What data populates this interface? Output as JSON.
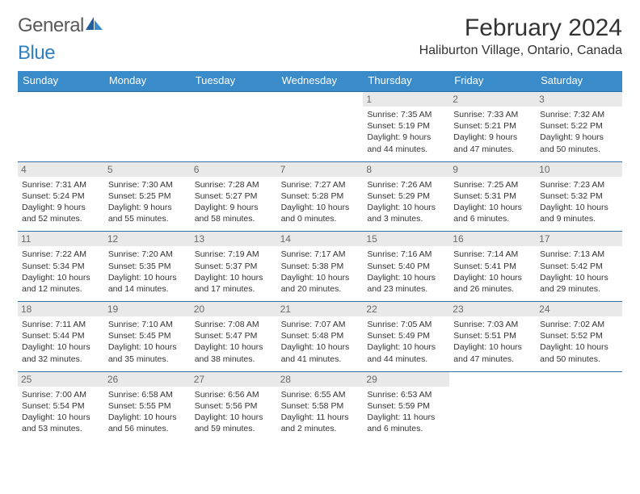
{
  "brand": {
    "word1": "General",
    "word2": "Blue"
  },
  "title": "February 2024",
  "location": "Haliburton Village, Ontario, Canada",
  "colors": {
    "header_bg": "#3a8bc9",
    "week_border": "#2f6fa6",
    "daynum_bg": "#e9e9e9",
    "text": "#333333",
    "logo_gray": "#5a5a5a",
    "logo_blue": "#2f7fc1"
  },
  "typography": {
    "title_fontsize": 30,
    "location_fontsize": 16,
    "dow_fontsize": 13,
    "daynum_fontsize": 12,
    "body_fontsize": 10.5
  },
  "days_of_week": [
    "Sunday",
    "Monday",
    "Tuesday",
    "Wednesday",
    "Thursday",
    "Friday",
    "Saturday"
  ],
  "weeks": [
    [
      null,
      null,
      null,
      null,
      {
        "n": "1",
        "sunrise": "Sunrise: 7:35 AM",
        "sunset": "Sunset: 5:19 PM",
        "dl1": "Daylight: 9 hours",
        "dl2": "and 44 minutes."
      },
      {
        "n": "2",
        "sunrise": "Sunrise: 7:33 AM",
        "sunset": "Sunset: 5:21 PM",
        "dl1": "Daylight: 9 hours",
        "dl2": "and 47 minutes."
      },
      {
        "n": "3",
        "sunrise": "Sunrise: 7:32 AM",
        "sunset": "Sunset: 5:22 PM",
        "dl1": "Daylight: 9 hours",
        "dl2": "and 50 minutes."
      }
    ],
    [
      {
        "n": "4",
        "sunrise": "Sunrise: 7:31 AM",
        "sunset": "Sunset: 5:24 PM",
        "dl1": "Daylight: 9 hours",
        "dl2": "and 52 minutes."
      },
      {
        "n": "5",
        "sunrise": "Sunrise: 7:30 AM",
        "sunset": "Sunset: 5:25 PM",
        "dl1": "Daylight: 9 hours",
        "dl2": "and 55 minutes."
      },
      {
        "n": "6",
        "sunrise": "Sunrise: 7:28 AM",
        "sunset": "Sunset: 5:27 PM",
        "dl1": "Daylight: 9 hours",
        "dl2": "and 58 minutes."
      },
      {
        "n": "7",
        "sunrise": "Sunrise: 7:27 AM",
        "sunset": "Sunset: 5:28 PM",
        "dl1": "Daylight: 10 hours",
        "dl2": "and 0 minutes."
      },
      {
        "n": "8",
        "sunrise": "Sunrise: 7:26 AM",
        "sunset": "Sunset: 5:29 PM",
        "dl1": "Daylight: 10 hours",
        "dl2": "and 3 minutes."
      },
      {
        "n": "9",
        "sunrise": "Sunrise: 7:25 AM",
        "sunset": "Sunset: 5:31 PM",
        "dl1": "Daylight: 10 hours",
        "dl2": "and 6 minutes."
      },
      {
        "n": "10",
        "sunrise": "Sunrise: 7:23 AM",
        "sunset": "Sunset: 5:32 PM",
        "dl1": "Daylight: 10 hours",
        "dl2": "and 9 minutes."
      }
    ],
    [
      {
        "n": "11",
        "sunrise": "Sunrise: 7:22 AM",
        "sunset": "Sunset: 5:34 PM",
        "dl1": "Daylight: 10 hours",
        "dl2": "and 12 minutes."
      },
      {
        "n": "12",
        "sunrise": "Sunrise: 7:20 AM",
        "sunset": "Sunset: 5:35 PM",
        "dl1": "Daylight: 10 hours",
        "dl2": "and 14 minutes."
      },
      {
        "n": "13",
        "sunrise": "Sunrise: 7:19 AM",
        "sunset": "Sunset: 5:37 PM",
        "dl1": "Daylight: 10 hours",
        "dl2": "and 17 minutes."
      },
      {
        "n": "14",
        "sunrise": "Sunrise: 7:17 AM",
        "sunset": "Sunset: 5:38 PM",
        "dl1": "Daylight: 10 hours",
        "dl2": "and 20 minutes."
      },
      {
        "n": "15",
        "sunrise": "Sunrise: 7:16 AM",
        "sunset": "Sunset: 5:40 PM",
        "dl1": "Daylight: 10 hours",
        "dl2": "and 23 minutes."
      },
      {
        "n": "16",
        "sunrise": "Sunrise: 7:14 AM",
        "sunset": "Sunset: 5:41 PM",
        "dl1": "Daylight: 10 hours",
        "dl2": "and 26 minutes."
      },
      {
        "n": "17",
        "sunrise": "Sunrise: 7:13 AM",
        "sunset": "Sunset: 5:42 PM",
        "dl1": "Daylight: 10 hours",
        "dl2": "and 29 minutes."
      }
    ],
    [
      {
        "n": "18",
        "sunrise": "Sunrise: 7:11 AM",
        "sunset": "Sunset: 5:44 PM",
        "dl1": "Daylight: 10 hours",
        "dl2": "and 32 minutes."
      },
      {
        "n": "19",
        "sunrise": "Sunrise: 7:10 AM",
        "sunset": "Sunset: 5:45 PM",
        "dl1": "Daylight: 10 hours",
        "dl2": "and 35 minutes."
      },
      {
        "n": "20",
        "sunrise": "Sunrise: 7:08 AM",
        "sunset": "Sunset: 5:47 PM",
        "dl1": "Daylight: 10 hours",
        "dl2": "and 38 minutes."
      },
      {
        "n": "21",
        "sunrise": "Sunrise: 7:07 AM",
        "sunset": "Sunset: 5:48 PM",
        "dl1": "Daylight: 10 hours",
        "dl2": "and 41 minutes."
      },
      {
        "n": "22",
        "sunrise": "Sunrise: 7:05 AM",
        "sunset": "Sunset: 5:49 PM",
        "dl1": "Daylight: 10 hours",
        "dl2": "and 44 minutes."
      },
      {
        "n": "23",
        "sunrise": "Sunrise: 7:03 AM",
        "sunset": "Sunset: 5:51 PM",
        "dl1": "Daylight: 10 hours",
        "dl2": "and 47 minutes."
      },
      {
        "n": "24",
        "sunrise": "Sunrise: 7:02 AM",
        "sunset": "Sunset: 5:52 PM",
        "dl1": "Daylight: 10 hours",
        "dl2": "and 50 minutes."
      }
    ],
    [
      {
        "n": "25",
        "sunrise": "Sunrise: 7:00 AM",
        "sunset": "Sunset: 5:54 PM",
        "dl1": "Daylight: 10 hours",
        "dl2": "and 53 minutes."
      },
      {
        "n": "26",
        "sunrise": "Sunrise: 6:58 AM",
        "sunset": "Sunset: 5:55 PM",
        "dl1": "Daylight: 10 hours",
        "dl2": "and 56 minutes."
      },
      {
        "n": "27",
        "sunrise": "Sunrise: 6:56 AM",
        "sunset": "Sunset: 5:56 PM",
        "dl1": "Daylight: 10 hours",
        "dl2": "and 59 minutes."
      },
      {
        "n": "28",
        "sunrise": "Sunrise: 6:55 AM",
        "sunset": "Sunset: 5:58 PM",
        "dl1": "Daylight: 11 hours",
        "dl2": "and 2 minutes."
      },
      {
        "n": "29",
        "sunrise": "Sunrise: 6:53 AM",
        "sunset": "Sunset: 5:59 PM",
        "dl1": "Daylight: 11 hours",
        "dl2": "and 6 minutes."
      },
      null,
      null
    ]
  ]
}
